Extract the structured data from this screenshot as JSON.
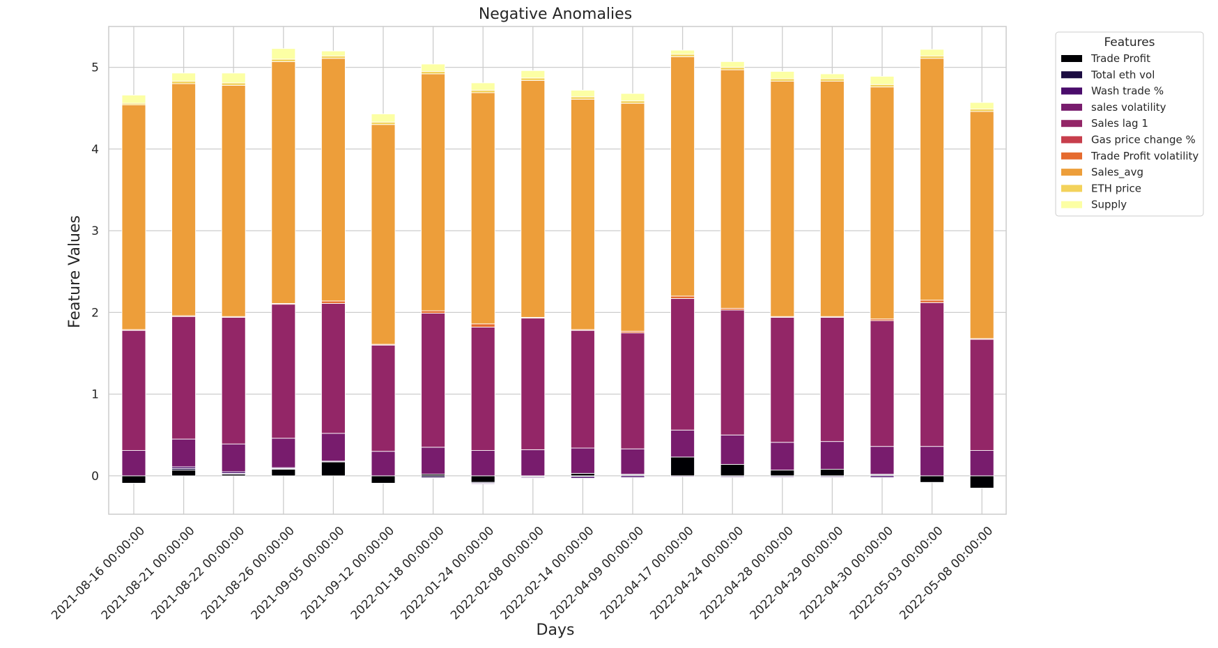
{
  "chart_data": {
    "type": "bar",
    "stacked": true,
    "title": "Negative Anomalies",
    "xlabel": "Days",
    "ylabel": "Feature Values",
    "ylim": [
      -0.47,
      5.5
    ],
    "yticks": [
      0,
      1,
      2,
      3,
      4,
      5
    ],
    "grid": true,
    "legend_title": "Features",
    "legend_position": "outside-top-right",
    "categories": [
      "2021-08-16 00:00:00",
      "2021-08-21 00:00:00",
      "2021-08-22 00:00:00",
      "2021-08-26 00:00:00",
      "2021-09-05 00:00:00",
      "2021-09-12 00:00:00",
      "2022-01-18 00:00:00",
      "2022-01-24 00:00:00",
      "2022-02-08 00:00:00",
      "2022-02-14 00:00:00",
      "2022-04-09 00:00:00",
      "2022-04-17 00:00:00",
      "2022-04-24 00:00:00",
      "2022-04-28 00:00:00",
      "2022-04-29 00:00:00",
      "2022-04-30 00:00:00",
      "2022-05-03 00:00:00",
      "2022-05-08 00:00:00"
    ],
    "series": [
      {
        "name": "Trade Profit",
        "color": "#000004",
        "values": [
          -0.09,
          0.07,
          0.02,
          0.08,
          0.17,
          -0.09,
          0.02,
          -0.08,
          -0.01,
          0.03,
          0.01,
          0.23,
          0.14,
          0.07,
          0.08,
          0.01,
          -0.08,
          -0.15
        ]
      },
      {
        "name": "Total eth vol",
        "color": "#1b0c41",
        "values": [
          0.0,
          0.02,
          0.01,
          0.01,
          0.0,
          0.0,
          -0.02,
          -0.01,
          -0.01,
          -0.01,
          0.01,
          0.0,
          -0.01,
          -0.01,
          -0.01,
          0.01,
          0.0,
          0.0
        ]
      },
      {
        "name": "Wash trade %",
        "color": "#4a0c6b",
        "values": [
          0.0,
          0.02,
          0.02,
          0.01,
          0.01,
          0.0,
          -0.01,
          -0.01,
          -0.01,
          -0.02,
          -0.02,
          -0.01,
          -0.01,
          -0.01,
          -0.01,
          -0.02,
          0.0,
          0.0
        ]
      },
      {
        "name": "sales volatility",
        "color": "#781c6d",
        "values": [
          0.31,
          0.34,
          0.34,
          0.36,
          0.34,
          0.3,
          0.33,
          0.31,
          0.32,
          0.31,
          0.31,
          0.33,
          0.36,
          0.34,
          0.34,
          0.34,
          0.36,
          0.31
        ]
      },
      {
        "name": "Sales lag 1",
        "color": "#932667",
        "values": [
          1.47,
          1.5,
          1.55,
          1.64,
          1.59,
          1.3,
          1.64,
          1.51,
          1.61,
          1.44,
          1.42,
          1.61,
          1.53,
          1.53,
          1.52,
          1.54,
          1.76,
          1.36
        ]
      },
      {
        "name": "Gas price change %",
        "color": "#c73e4c",
        "values": [
          0.0,
          0.0,
          0.0,
          0.0,
          0.0,
          0.0,
          0.0,
          0.0,
          0.0,
          0.0,
          0.0,
          0.0,
          0.0,
          0.0,
          0.0,
          0.0,
          0.0,
          0.0
        ]
      },
      {
        "name": "Trade Profit volatility",
        "color": "#e56b2f",
        "values": [
          0.01,
          0.01,
          0.01,
          0.01,
          0.03,
          0.01,
          0.03,
          0.04,
          0.01,
          0.01,
          0.02,
          0.03,
          0.02,
          0.01,
          0.01,
          0.02,
          0.03,
          0.01
        ]
      },
      {
        "name": "Sales_avg",
        "color": "#ed9e3a",
        "values": [
          2.75,
          2.84,
          2.83,
          2.96,
          2.97,
          2.69,
          2.9,
          2.83,
          2.9,
          2.82,
          2.79,
          2.93,
          2.92,
          2.88,
          2.88,
          2.84,
          2.96,
          2.78
        ]
      },
      {
        "name": "ETH price",
        "color": "#f3d25b",
        "values": [
          0.02,
          0.03,
          0.03,
          0.03,
          0.03,
          0.03,
          0.03,
          0.03,
          0.03,
          0.03,
          0.03,
          0.03,
          0.03,
          0.03,
          0.03,
          0.03,
          0.03,
          0.03
        ]
      },
      {
        "name": "Supply",
        "color": "#fcffa4",
        "values": [
          0.1,
          0.1,
          0.12,
          0.13,
          0.06,
          0.1,
          0.09,
          0.09,
          0.09,
          0.08,
          0.09,
          0.05,
          0.07,
          0.09,
          0.06,
          0.1,
          0.08,
          0.08
        ]
      }
    ]
  }
}
